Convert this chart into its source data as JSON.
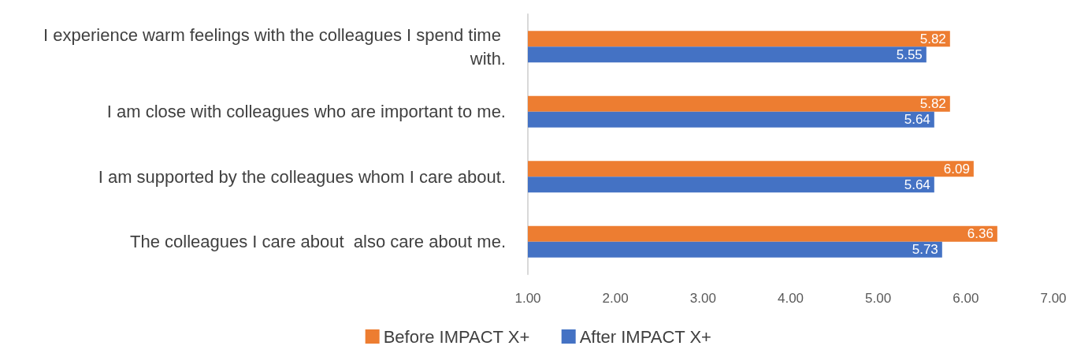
{
  "chart_data": {
    "type": "bar",
    "orientation": "horizontal",
    "categories": [
      "I experience warm feelings with the colleagues I spend time with.",
      "I am close with colleagues who are important to me.",
      "I am supported by the colleagues whom I care about.",
      "The colleagues I care about  also care about me."
    ],
    "series": [
      {
        "name": "Before IMPACT X+",
        "color": "#ed7d31",
        "values": [
          5.82,
          5.82,
          6.09,
          6.36
        ]
      },
      {
        "name": "After IMPACT X+",
        "color": "#4472c4",
        "values": [
          5.55,
          5.64,
          5.64,
          5.73
        ]
      }
    ],
    "xlim": [
      1,
      7
    ],
    "xticks": [
      {
        "value": 1,
        "label": "1.00"
      },
      {
        "value": 2,
        "label": "2.00"
      },
      {
        "value": 3,
        "label": "3.00"
      },
      {
        "value": 4,
        "label": "4.00"
      },
      {
        "value": 5,
        "label": "5.00"
      },
      {
        "value": 6,
        "label": "6.00"
      },
      {
        "value": 7,
        "label": "7.00"
      }
    ],
    "data_labels": true,
    "grid": false,
    "legend": "bottom"
  }
}
